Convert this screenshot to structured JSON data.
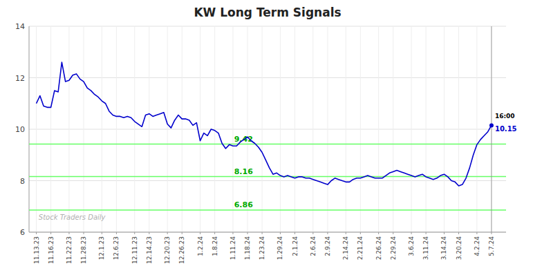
{
  "chart_data": {
    "type": "line",
    "title": "KW Long Term Signals",
    "watermark": "Stock Traders Daily",
    "grid": true,
    "ylim": [
      6,
      14
    ],
    "yticks": [
      6,
      8,
      10,
      12,
      14
    ],
    "categories": [
      "11.13.23",
      null,
      null,
      null,
      "11.16.23",
      null,
      null,
      null,
      null,
      "11.22.23",
      null,
      null,
      null,
      "11.28.23",
      null,
      null,
      null,
      null,
      "12.1.23",
      null,
      null,
      null,
      "12.6.23",
      null,
      null,
      null,
      null,
      "12.11.23",
      null,
      null,
      null,
      "12.14.23",
      null,
      null,
      null,
      null,
      "12.20.23",
      null,
      null,
      null,
      "12.26.23",
      null,
      null,
      null,
      null,
      "1.2.24",
      null,
      null,
      null,
      "1.8.24",
      null,
      null,
      null,
      null,
      "1.11.24",
      null,
      null,
      null,
      "1.18.24",
      null,
      null,
      null,
      "1.23.24",
      null,
      null,
      null,
      null,
      "1.29.24",
      null,
      null,
      null,
      "2.1.24",
      null,
      null,
      null,
      null,
      "2.6.24",
      null,
      null,
      null,
      "2.9.24",
      null,
      null,
      null,
      null,
      "2.14.24",
      null,
      null,
      null,
      "2.21.24",
      null,
      null,
      null,
      null,
      "2.26.24",
      null,
      null,
      null,
      "2.29.24",
      null,
      null,
      null,
      null,
      "3.6.24",
      null,
      null,
      null,
      "3.11.24",
      null,
      null,
      null,
      null,
      "3.14.24",
      null,
      null,
      null,
      "3.20.24",
      null,
      null,
      null,
      null,
      "4.2.24",
      null,
      null,
      null,
      "5.7.24"
    ],
    "series": [
      {
        "name": "KW",
        "color": "#0000cc",
        "values": [
          11.0,
          11.3,
          10.9,
          10.85,
          10.85,
          11.5,
          11.45,
          12.6,
          11.85,
          11.9,
          12.1,
          12.15,
          11.95,
          11.85,
          11.6,
          11.5,
          11.35,
          11.25,
          11.1,
          11.0,
          10.7,
          10.55,
          10.5,
          10.5,
          10.45,
          10.5,
          10.45,
          10.3,
          10.2,
          10.1,
          10.55,
          10.6,
          10.5,
          10.55,
          10.6,
          10.65,
          10.2,
          10.05,
          10.35,
          10.55,
          10.4,
          10.4,
          10.35,
          10.15,
          10.25,
          9.55,
          9.85,
          9.75,
          10.0,
          9.95,
          9.85,
          9.45,
          9.25,
          9.4,
          9.35,
          9.35,
          9.5,
          9.6,
          9.7,
          9.55,
          9.45,
          9.3,
          9.1,
          8.8,
          8.5,
          8.25,
          8.3,
          8.2,
          8.15,
          8.2,
          8.15,
          8.1,
          8.15,
          8.15,
          8.1,
          8.1,
          8.05,
          8.0,
          7.95,
          7.9,
          7.85,
          8.0,
          8.1,
          8.05,
          8.0,
          7.95,
          7.95,
          8.05,
          8.1,
          8.1,
          8.15,
          8.2,
          8.15,
          8.1,
          8.1,
          8.1,
          8.2,
          8.3,
          8.35,
          8.4,
          8.35,
          8.3,
          8.25,
          8.2,
          8.15,
          8.2,
          8.25,
          8.15,
          8.1,
          8.05,
          8.1,
          8.2,
          8.25,
          8.15,
          8.0,
          7.95,
          7.8,
          7.85,
          8.1,
          8.5,
          9.0,
          9.4,
          9.6,
          9.75,
          9.9,
          10.15
        ]
      }
    ],
    "hlines": [
      {
        "value": 9.42,
        "label": "9.42",
        "color": "#66ff66",
        "label_color": "#00aa00"
      },
      {
        "value": 8.16,
        "label": "8.16",
        "color": "#66ff66",
        "label_color": "#00aa00"
      },
      {
        "value": 6.86,
        "label": "6.86",
        "color": "#66ff66",
        "label_color": "#00aa00"
      }
    ],
    "annotations": [
      {
        "text": "16:00",
        "color": "#000000"
      },
      {
        "text": "10.15",
        "value": 10.15,
        "color": "#0000cc"
      }
    ]
  }
}
